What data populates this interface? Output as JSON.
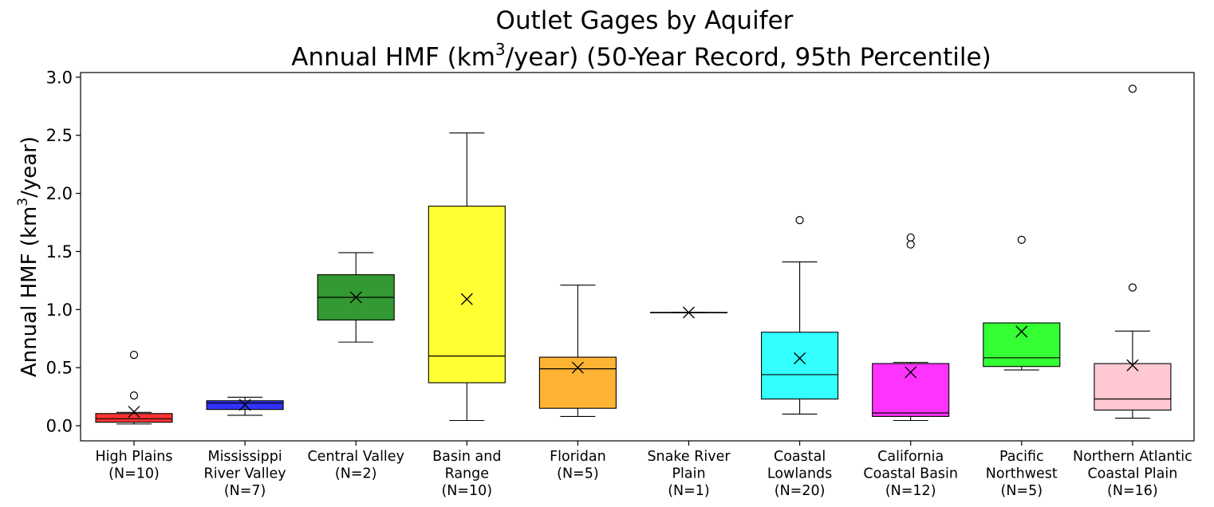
{
  "chart_data": {
    "type": "box",
    "title_line1": "Outlet Gages by Aquifer",
    "title_line2_pre": "Annual HMF (km",
    "title_line2_sup": "3",
    "title_line2_post": "/year) (50-Year Record, 95th Percentile)",
    "ylabel_pre": "Annual HMF (km",
    "ylabel_sup": "3",
    "ylabel_post": "/year)",
    "xlabel": "",
    "ylim": [
      -0.13,
      3.04
    ],
    "yticks": [
      0.0,
      0.5,
      1.0,
      1.5,
      2.0,
      2.5,
      3.0
    ],
    "ytick_labels": [
      "0.0",
      "0.5",
      "1.0",
      "1.5",
      "2.0",
      "2.5",
      "3.0"
    ],
    "grid": false,
    "mean_marker": "x",
    "boxes": [
      {
        "name": "High Plains",
        "label_lines": [
          "High Plains",
          "(N=10)"
        ],
        "color": "#ff3333",
        "whislo": 0.015,
        "q1": 0.03,
        "med": 0.06,
        "q3": 0.105,
        "whishi": 0.115,
        "mean": 0.12,
        "fliers": [
          0.26,
          0.61
        ]
      },
      {
        "name": "Mississippi River Valley",
        "label_lines": [
          "Mississippi",
          "River Valley",
          "(N=7)"
        ],
        "color": "#3333ff",
        "whislo": 0.09,
        "q1": 0.14,
        "med": 0.195,
        "q3": 0.215,
        "whishi": 0.245,
        "mean": 0.18,
        "fliers": []
      },
      {
        "name": "Central Valley",
        "label_lines": [
          "Central Valley",
          "(N=2)"
        ],
        "color": "#339933",
        "whislo": 0.72,
        "q1": 0.91,
        "med": 1.105,
        "q3": 1.3,
        "whishi": 1.49,
        "mean": 1.105,
        "fliers": []
      },
      {
        "name": "Basin and Range",
        "label_lines": [
          "Basin and",
          "Range",
          "(N=10)"
        ],
        "color": "#ffff33",
        "whislo": 0.045,
        "q1": 0.37,
        "med": 0.6,
        "q3": 1.89,
        "whishi": 2.52,
        "mean": 1.09,
        "fliers": []
      },
      {
        "name": "Floridan",
        "label_lines": [
          "Floridan",
          "(N=5)"
        ],
        "color": "#ffb333",
        "whislo": 0.08,
        "q1": 0.15,
        "med": 0.49,
        "q3": 0.59,
        "whishi": 1.21,
        "mean": 0.5,
        "fliers": []
      },
      {
        "name": "Snake River Plain",
        "label_lines": [
          "Snake River",
          "Plain",
          "(N=1)"
        ],
        "color": "#33ff33",
        "whislo": 0.975,
        "q1": 0.975,
        "med": 0.975,
        "q3": 0.975,
        "whishi": 0.975,
        "mean": 0.975,
        "fliers": []
      },
      {
        "name": "Coastal Lowlands",
        "label_lines": [
          "Coastal",
          "Lowlands",
          "(N=20)"
        ],
        "color": "#33ffff",
        "whislo": 0.1,
        "q1": 0.23,
        "med": 0.44,
        "q3": 0.805,
        "whishi": 1.41,
        "mean": 0.58,
        "fliers": [
          1.77
        ]
      },
      {
        "name": "California Coastal Basin",
        "label_lines": [
          "California",
          "Coastal Basin",
          "(N=12)"
        ],
        "color": "#ff33ff",
        "whislo": 0.045,
        "q1": 0.08,
        "med": 0.11,
        "q3": 0.535,
        "whishi": 0.545,
        "mean": 0.46,
        "fliers": [
          1.56,
          1.62
        ]
      },
      {
        "name": "Pacific Northwest",
        "label_lines": [
          "Pacific",
          "Northwest",
          "(N=5)"
        ],
        "color": "#33ff33",
        "whislo": 0.48,
        "q1": 0.51,
        "med": 0.585,
        "q3": 0.885,
        "whishi": 0.885,
        "mean": 0.81,
        "fliers": [
          1.6
        ]
      },
      {
        "name": "Northern Atlantic Coastal Plain",
        "label_lines": [
          "Northern Atlantic",
          "Coastal Plain",
          "(N=16)"
        ],
        "color": "#ffc8d2",
        "whislo": 0.065,
        "q1": 0.135,
        "med": 0.23,
        "q3": 0.535,
        "whishi": 0.815,
        "mean": 0.52,
        "fliers": [
          1.19,
          2.9
        ]
      }
    ]
  }
}
